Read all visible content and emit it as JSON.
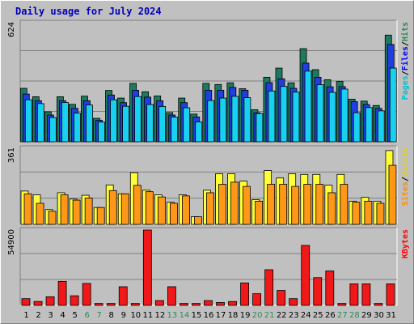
{
  "title": "Daily usage for July 2024",
  "colors": {
    "hits": "#1d7a5e",
    "files": "#1f3fe0",
    "pages": "#18d0f0",
    "visits": "#ffff38",
    "sites": "#ff9818",
    "kbytes": "#f01818",
    "panel": "#c0c0c0",
    "grid": "#808080",
    "hits_label": "#2e8b57",
    "files_label": "#0000ff",
    "pages_label": "#00c0d0",
    "visits_label": "#e8d000",
    "sites_label": "#ff8c00",
    "kbytes_label": "#ff0000",
    "weekend_label": "#2e8b57",
    "day_label": "#000000"
  },
  "chart_data": [
    {
      "type": "bar",
      "title": "Daily usage for July 2024",
      "ymax_label": "624",
      "ylim": [
        0,
        624
      ],
      "legend": [
        "Pages",
        "/",
        "Files",
        "/",
        "Hits"
      ],
      "categories": [
        "1",
        "2",
        "3",
        "4",
        "5",
        "6",
        "7",
        "8",
        "9",
        "10",
        "11",
        "12",
        "13",
        "14",
        "15",
        "16",
        "17",
        "18",
        "19",
        "20",
        "21",
        "22",
        "23",
        "24",
        "25",
        "26",
        "27",
        "28",
        "29",
        "30",
        "31"
      ],
      "weekend_days": [
        "6",
        "7",
        "13",
        "14",
        "20",
        "21",
        "27",
        "28"
      ],
      "series": [
        {
          "name": "Hits",
          "values": [
            280,
            236,
            157,
            236,
            196,
            239,
            123,
            269,
            229,
            306,
            262,
            240,
            153,
            229,
            145,
            306,
            300,
            309,
            278,
            168,
            338,
            386,
            309,
            488,
            378,
            325,
            317,
            223,
            213,
            190,
            559
          ]
        },
        {
          "name": "Files",
          "values": [
            250,
            215,
            140,
            215,
            175,
            215,
            113,
            245,
            205,
            270,
            234,
            215,
            140,
            205,
            130,
            270,
            270,
            285,
            270,
            152,
            310,
            330,
            280,
            412,
            338,
            288,
            289,
            210,
            195,
            175,
            510
          ]
        },
        {
          "name": "Pages",
          "values": [
            220,
            200,
            127,
            206,
            150,
            193,
            103,
            220,
            186,
            237,
            195,
            185,
            129,
            178,
            104,
            216,
            229,
            238,
            231,
            148,
            266,
            290,
            260,
            370,
            299,
            259,
            276,
            152,
            179,
            162,
            386
          ]
        }
      ]
    },
    {
      "type": "bar",
      "ymax_label": "361",
      "ylim": [
        0,
        361
      ],
      "legend": [
        "Sites",
        "/",
        "Visits"
      ],
      "categories": [
        "1",
        "2",
        "3",
        "4",
        "5",
        "6",
        "7",
        "8",
        "9",
        "10",
        "11",
        "12",
        "13",
        "14",
        "15",
        "16",
        "17",
        "18",
        "19",
        "20",
        "21",
        "22",
        "23",
        "24",
        "25",
        "26",
        "27",
        "28",
        "29",
        "30",
        "31"
      ],
      "series": [
        {
          "name": "Visits",
          "values": [
            158,
            140,
            70,
            150,
            120,
            138,
            80,
            187,
            145,
            245,
            162,
            140,
            105,
            140,
            36,
            162,
            240,
            240,
            205,
            117,
            255,
            220,
            240,
            237,
            237,
            186,
            237,
            110,
            128,
            110,
            350
          ]
        },
        {
          "name": "Sites",
          "values": [
            145,
            100,
            62,
            140,
            115,
            125,
            80,
            160,
            145,
            185,
            155,
            130,
            100,
            135,
            36,
            150,
            190,
            200,
            180,
            110,
            190,
            190,
            180,
            190,
            190,
            150,
            190,
            105,
            110,
            100,
            280
          ]
        }
      ]
    },
    {
      "type": "bar",
      "ymax_label": "54900",
      "ylim": [
        0,
        54900
      ],
      "legend": [
        "KBytes"
      ],
      "categories": [
        "1",
        "2",
        "3",
        "4",
        "5",
        "6",
        "7",
        "8",
        "9",
        "10",
        "11",
        "12",
        "13",
        "14",
        "15",
        "16",
        "17",
        "18",
        "19",
        "20",
        "21",
        "22",
        "23",
        "24",
        "25",
        "26",
        "27",
        "28",
        "29",
        "30",
        "31"
      ],
      "series": [
        {
          "name": "KBytes",
          "values": [
            4900,
            2850,
            6300,
            17500,
            7000,
            16000,
            1400,
            1400,
            13600,
            1400,
            54900,
            3500,
            13600,
            1400,
            1400,
            3500,
            2100,
            2800,
            16400,
            8500,
            26000,
            10900,
            4900,
            43700,
            20200,
            25100,
            1400,
            15700,
            15700,
            1400,
            15700
          ]
        }
      ]
    }
  ]
}
